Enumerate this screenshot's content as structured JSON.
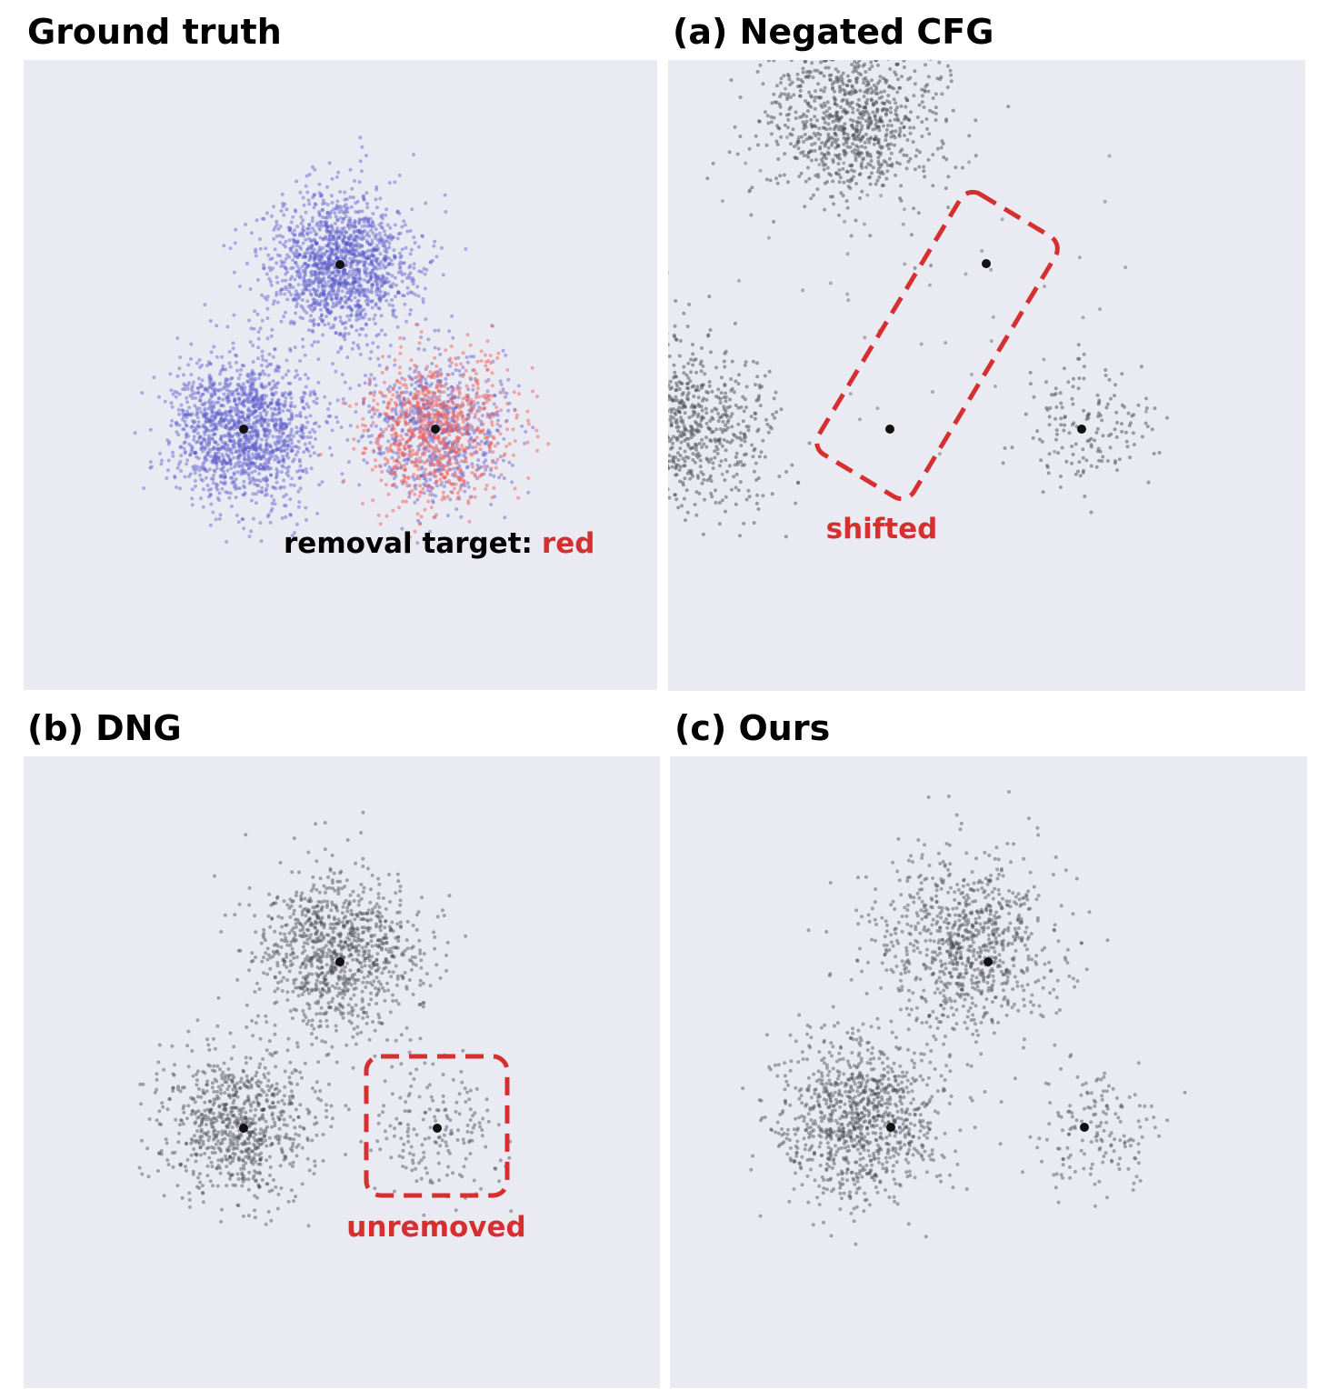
{
  "panels": [
    {
      "title": "Ground truth",
      "annotation": "removal target:",
      "highlight": "red"
    },
    {
      "title": "(a) Negated CFG",
      "annotation": "shifted"
    },
    {
      "title": "(b) DNG",
      "annotation": "unremoved"
    },
    {
      "title": "(c) Ours"
    }
  ]
}
